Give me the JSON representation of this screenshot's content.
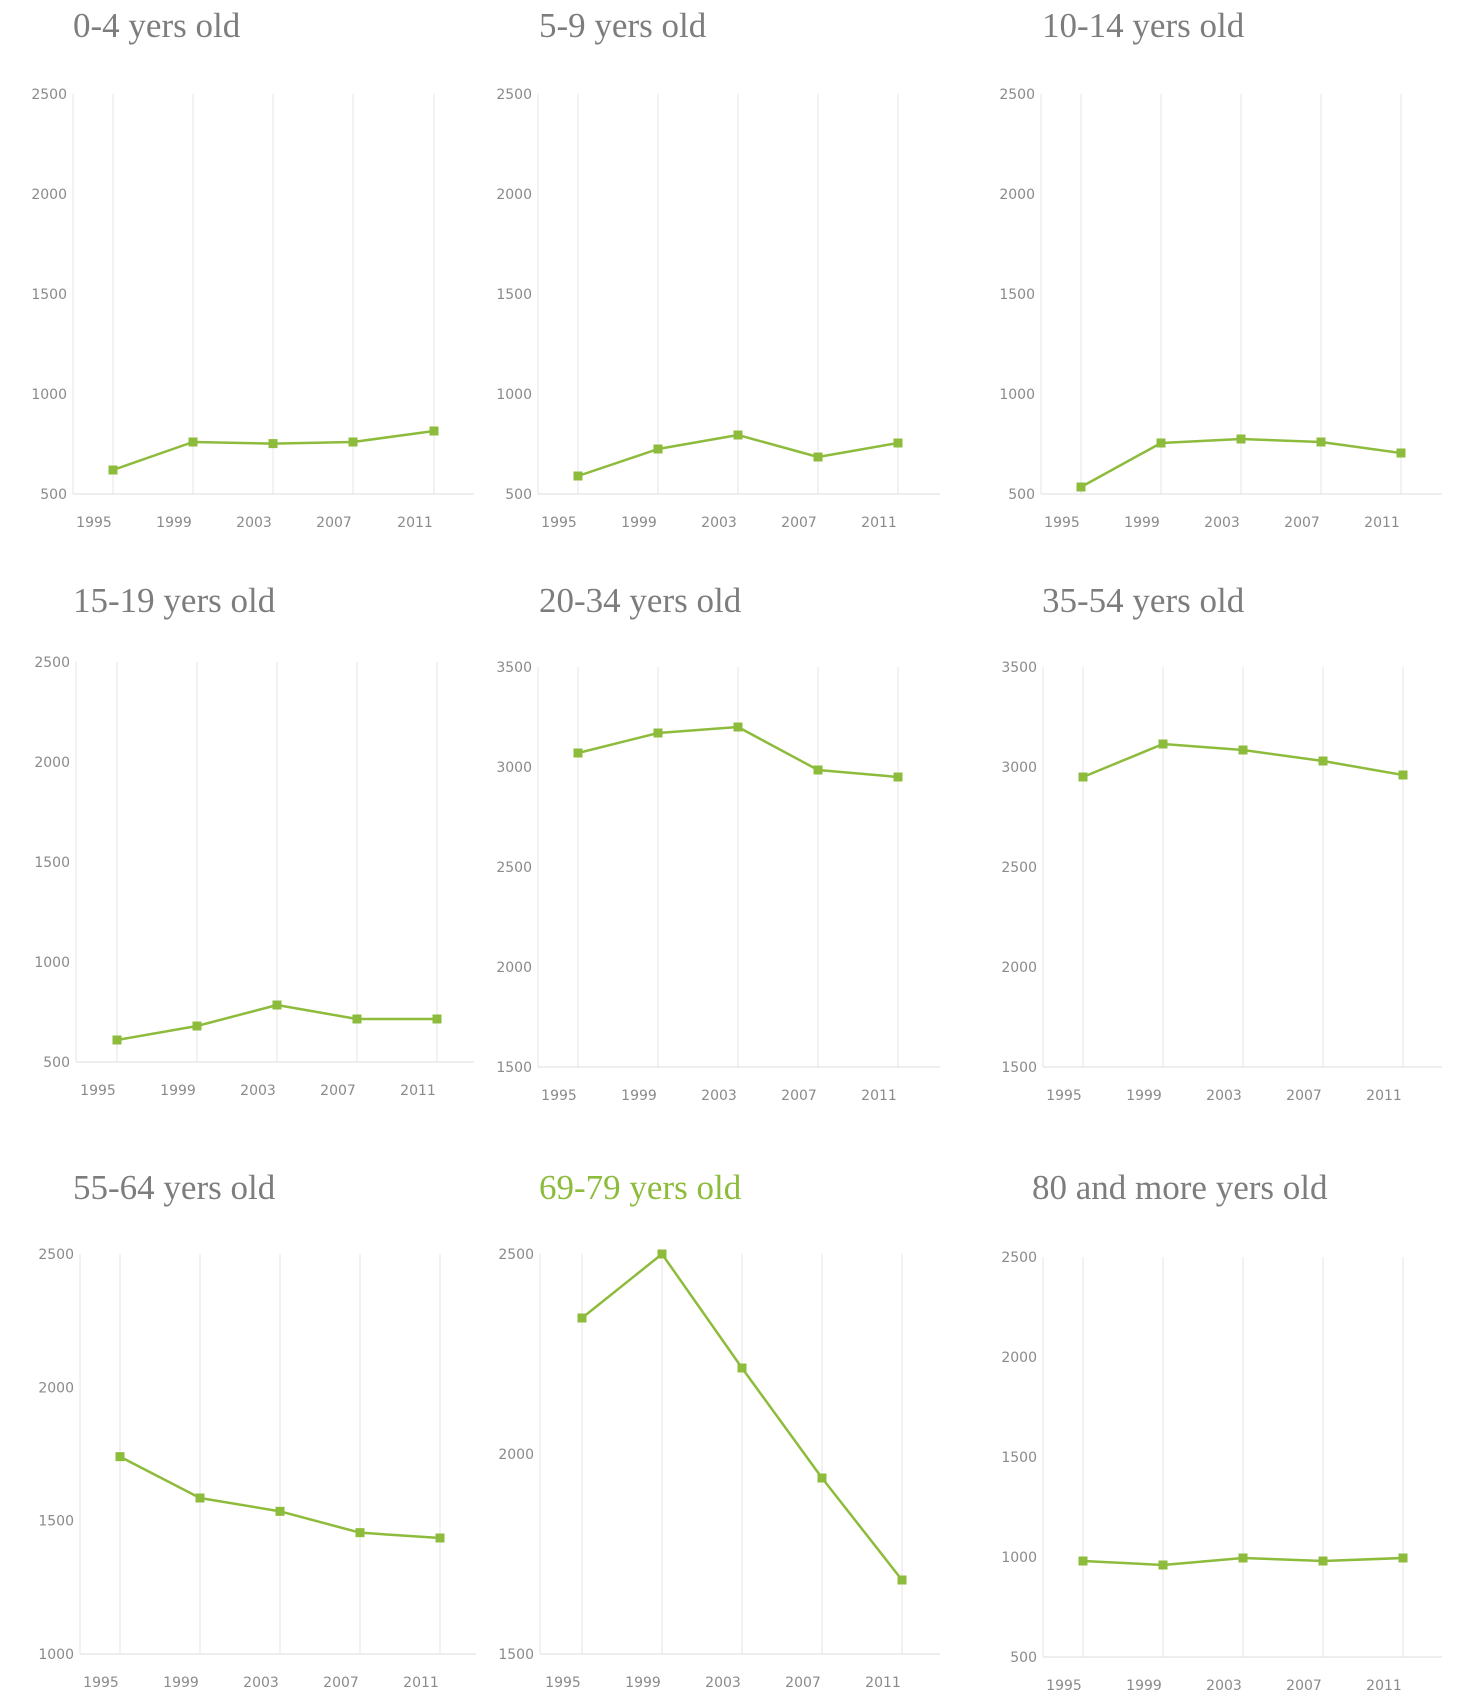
{
  "accent_color": "#8dbb3c",
  "chart_data": [
    {
      "type": "line",
      "title": "0-4 yers old",
      "title_highlight": false,
      "x": [
        "1995",
        "1999",
        "2003",
        "2007",
        "2011"
      ],
      "series": [
        {
          "values": [
            620,
            760,
            752,
            760,
            815
          ]
        }
      ],
      "ylim": [
        500,
        2500
      ],
      "yticks": [
        "500",
        "1000",
        "1500",
        "2000",
        "2500"
      ],
      "grid": "vertical"
    },
    {
      "type": "line",
      "title": "5-9 yers old",
      "title_highlight": false,
      "x": [
        "1995",
        "1999",
        "2003",
        "2007",
        "2011"
      ],
      "series": [
        {
          "values": [
            590,
            725,
            795,
            685,
            755
          ]
        }
      ],
      "ylim": [
        500,
        2500
      ],
      "yticks": [
        "500",
        "1000",
        "1500",
        "2000",
        "2500"
      ],
      "grid": "vertical"
    },
    {
      "type": "line",
      "title": "10-14 yers old",
      "title_highlight": false,
      "x": [
        "1995",
        "1999",
        "2003",
        "2007",
        "2011"
      ],
      "series": [
        {
          "values": [
            535,
            755,
            775,
            760,
            705
          ]
        }
      ],
      "ylim": [
        500,
        2500
      ],
      "yticks": [
        "500",
        "1000",
        "1500",
        "2000",
        "2500"
      ],
      "grid": "vertical"
    },
    {
      "type": "line",
      "title": "15-19 yers old",
      "title_highlight": false,
      "x": [
        "1995",
        "1999",
        "2003",
        "2007",
        "2011"
      ],
      "series": [
        {
          "values": [
            610,
            680,
            785,
            715,
            715
          ]
        }
      ],
      "ylim": [
        500,
        2500
      ],
      "yticks": [
        "500",
        "1000",
        "1500",
        "2000",
        "2500"
      ],
      "grid": "vertical"
    },
    {
      "type": "line",
      "title": "20-34 yers old",
      "title_highlight": false,
      "x": [
        "1995",
        "1999",
        "2003",
        "2007",
        "2011"
      ],
      "series": [
        {
          "values": [
            3070,
            3170,
            3200,
            2985,
            2950
          ]
        }
      ],
      "ylim": [
        1500,
        3500
      ],
      "yticks": [
        "1500",
        "2000",
        "2500",
        "3000",
        "3500"
      ],
      "grid": "vertical"
    },
    {
      "type": "line",
      "title": "35-54  yers old",
      "title_highlight": false,
      "x": [
        "1995",
        "1999",
        "2003",
        "2007",
        "2011"
      ],
      "series": [
        {
          "values": [
            2950,
            3115,
            3085,
            3030,
            2960
          ]
        }
      ],
      "ylim": [
        1500,
        3500
      ],
      "yticks": [
        "1500",
        "2000",
        "2500",
        "3000",
        "3500"
      ],
      "grid": "vertical"
    },
    {
      "type": "line",
      "title": "55-64 yers old",
      "title_highlight": false,
      "x": [
        "1995",
        "1999",
        "2003",
        "2007",
        "2011"
      ],
      "series": [
        {
          "values": [
            1740,
            1585,
            1535,
            1455,
            1435
          ]
        }
      ],
      "ylim": [
        1000,
        2500
      ],
      "yticks": [
        "1000",
        "1500",
        "2000",
        "2500"
      ],
      "grid": "vertical"
    },
    {
      "type": "line",
      "title": "69-79 yers old",
      "title_highlight": true,
      "x": [
        "1995",
        "1999",
        "2003",
        "2007",
        "2011"
      ],
      "series": [
        {
          "values": [
            2340,
            2500,
            2215,
            1940,
            1685
          ]
        }
      ],
      "ylim": [
        1500,
        2500
      ],
      "yticks": [
        "1500",
        "2000",
        "2500"
      ],
      "grid": "vertical"
    },
    {
      "type": "line",
      "title": "80 and more yers old",
      "title_highlight": false,
      "x": [
        "1995",
        "1999",
        "2003",
        "2007",
        "2011"
      ],
      "series": [
        {
          "values": [
            980,
            960,
            995,
            980,
            995
          ]
        }
      ],
      "ylim": [
        500,
        2500
      ],
      "yticks": [
        "500",
        "1000",
        "1500",
        "2000",
        "2500"
      ],
      "grid": "vertical"
    }
  ]
}
